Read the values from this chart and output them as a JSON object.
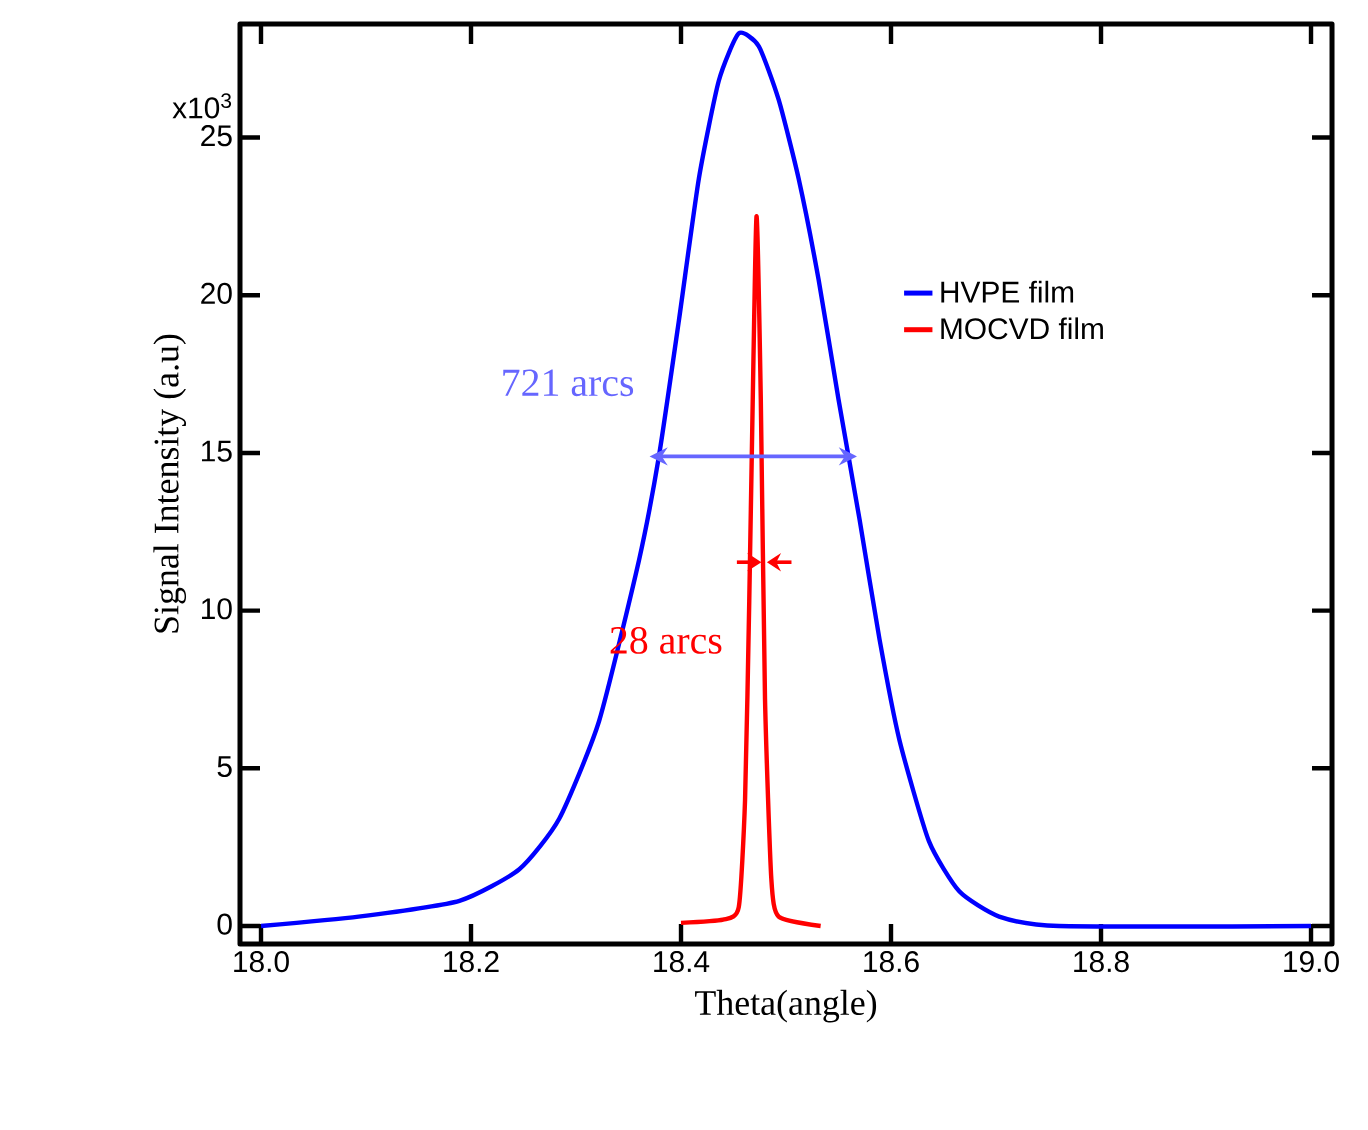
{
  "chart_data": {
    "type": "line",
    "xlabel": "Theta(angle)",
    "ylabel": "Signal Intensity (a.u)",
    "xlim": [
      17.98,
      19.02
    ],
    "ylim": [
      -0.57,
      28.6
    ],
    "xticks": [
      {
        "value": 18.0,
        "label": "18.0"
      },
      {
        "value": 18.2,
        "label": "18.2"
      },
      {
        "value": 18.4,
        "label": "18.4"
      },
      {
        "value": 18.6,
        "label": "18.6"
      },
      {
        "value": 18.8,
        "label": "18.8"
      },
      {
        "value": 19.0,
        "label": "19.0"
      }
    ],
    "yticks": [
      0,
      5,
      10,
      15,
      20,
      25
    ],
    "legend": "right",
    "grid": false,
    "marker": "none",
    "line_style": "solid",
    "series": [
      {
        "name": "HVPE film",
        "color": "#0000ff",
        "x": [
          18.0,
          18.093,
          18.189,
          18.246,
          18.284,
          18.322,
          18.36,
          18.379,
          18.398,
          18.417,
          18.436,
          18.455,
          18.474,
          18.493,
          18.512,
          18.531,
          18.55,
          18.57,
          18.589,
          18.608,
          18.636,
          18.665,
          18.703,
          18.76,
          19.0
        ],
        "values": [
          0,
          0.3,
          0.8,
          1.8,
          3.4,
          6.5,
          11.6,
          14.9,
          19.2,
          23.7,
          26.8,
          28.3,
          27.9,
          26.2,
          23.7,
          20.5,
          16.7,
          12.9,
          9.1,
          5.9,
          2.7,
          1.1,
          0.3,
          0,
          0
        ]
      },
      {
        "name": "MOCVD  film",
        "color": "#ff0000",
        "x": [
          18.4,
          18.44,
          18.455,
          18.461,
          18.465,
          18.469,
          18.472,
          18.476,
          18.48,
          18.486,
          18.493,
          18.533
        ],
        "values": [
          0.1,
          0.2,
          0.6,
          4.0,
          10.3,
          18.0,
          22.5,
          16.7,
          7.2,
          1.5,
          0.3,
          0
        ]
      }
    ],
    "annotations": [
      "x10$^{3}$",
      "721 arcs",
      "28 arcs"
    ]
  }
}
